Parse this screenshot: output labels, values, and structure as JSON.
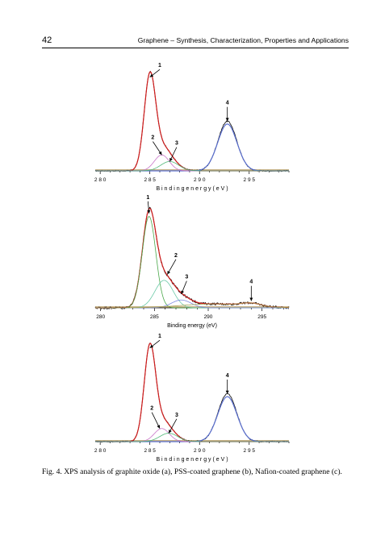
{
  "header": {
    "page_number": "42",
    "running_title": "Graphene – Synthesis, Characterization, Properties and Applications"
  },
  "caption": "Fig. 4. XPS analysis of graphite oxide (a), PSS-coated graphene (b), Nafion-coated graphene (c).",
  "chart_data": [
    {
      "type": "line",
      "panel": "a",
      "xlabel": "B i n d i n g   e n e r g y   ( e V )",
      "xlim": [
        279.5,
        299
      ],
      "ylim": [
        0,
        1.05
      ],
      "x_ticks": [
        280,
        285,
        290,
        295
      ],
      "x_tick_labels": [
        "2 8 0",
        "2 8 5",
        "2 9 0",
        "2 9 5"
      ],
      "baseline_color": "#c8b488",
      "series": [
        {
          "color": "#1a1a1a",
          "kind": "experimental",
          "noise": 0.006,
          "peaks": [
            [
              285.0,
              1.0,
              0.58
            ],
            [
              286.2,
              0.17,
              0.75
            ],
            [
              287.0,
              0.1,
              0.9
            ],
            [
              292.8,
              0.53,
              0.95
            ]
          ]
        },
        {
          "color": "#d01c1c",
          "kind": "fit",
          "peaks": [
            [
              285.0,
              1.0,
              0.58
            ],
            [
              286.2,
              0.17,
              0.75
            ],
            [
              287.0,
              0.1,
              0.9
            ]
          ]
        },
        {
          "color": "#5a6fd0",
          "kind": "fit",
          "peaks": [
            [
              292.8,
              0.5,
              0.97
            ]
          ]
        },
        {
          "color": "#c874c8",
          "kind": "component",
          "peaks": [
            [
              286.2,
              0.17,
              0.75
            ]
          ]
        },
        {
          "color": "#50b878",
          "kind": "component",
          "peaks": [
            [
              287.0,
              0.1,
              0.9
            ]
          ]
        }
      ],
      "annotations": [
        {
          "label": "1",
          "x": 285.0,
          "y": 1.0,
          "tx": 286.0,
          "ty": 1.1
        },
        {
          "label": "2",
          "x": 286.2,
          "y": 0.17,
          "tx": 285.3,
          "ty": 0.33
        },
        {
          "label": "3",
          "x": 287.0,
          "y": 0.1,
          "tx": 287.7,
          "ty": 0.27
        },
        {
          "label": "4",
          "x": 292.8,
          "y": 0.53,
          "tx": 292.8,
          "ty": 0.7
        }
      ]
    },
    {
      "type": "line",
      "panel": "b",
      "xlabel": "Binding energy (eV)",
      "xlim": [
        279.5,
        297.5
      ],
      "ylim": [
        0,
        1.0
      ],
      "x_ticks": [
        280,
        285,
        290,
        295
      ],
      "x_tick_labels": [
        "280",
        "285",
        "290",
        "295"
      ],
      "baseline_color": "#c8b488",
      "series": [
        {
          "color": "#1a1a1a",
          "kind": "experimental",
          "noise": 0.012,
          "peaks": [
            [
              284.5,
              0.93,
              0.63
            ],
            [
              285.9,
              0.28,
              0.85
            ],
            [
              287.5,
              0.08,
              0.9
            ],
            [
              290.5,
              0.04,
              3.0
            ],
            [
              294.0,
              0.03,
              0.9
            ]
          ]
        },
        {
          "color": "#d01c1c",
          "kind": "fit",
          "peaks": [
            [
              284.5,
              0.93,
              0.63
            ],
            [
              285.9,
              0.28,
              0.85
            ],
            [
              287.5,
              0.08,
              0.9
            ],
            [
              290.5,
              0.04,
              3.0
            ],
            [
              294.0,
              0.03,
              0.9
            ]
          ]
        },
        {
          "color": "#4aa84a",
          "kind": "component",
          "peaks": [
            [
              284.5,
              0.93,
              0.63
            ]
          ]
        },
        {
          "color": "#6ccaa8",
          "kind": "component",
          "peaks": [
            [
              285.9,
              0.28,
              0.85
            ]
          ]
        },
        {
          "color": "#7f8be0",
          "kind": "component",
          "peaks": [
            [
              287.5,
              0.08,
              0.9
            ]
          ]
        },
        {
          "color": "#a8a050",
          "kind": "component",
          "peaks": [
            [
              290.5,
              0.04,
              3.0
            ],
            [
              294.0,
              0.03,
              0.9
            ]
          ]
        }
      ],
      "annotations": [
        {
          "label": "1",
          "x": 284.5,
          "y": 0.96,
          "tx": 284.4,
          "ty": 1.1
        },
        {
          "label": "2",
          "x": 286.2,
          "y": 0.34,
          "tx": 287.0,
          "ty": 0.51
        },
        {
          "label": "3",
          "x": 287.5,
          "y": 0.14,
          "tx": 288.0,
          "ty": 0.29
        },
        {
          "label": "4",
          "x": 294.0,
          "y": 0.07,
          "tx": 294.0,
          "ty": 0.24
        }
      ]
    },
    {
      "type": "line",
      "panel": "c",
      "xlabel": "B i n d i n g   e n e r g y   ( e V )",
      "xlim": [
        279.5,
        299
      ],
      "ylim": [
        0,
        1.05
      ],
      "x_ticks": [
        280,
        285,
        290,
        295
      ],
      "x_tick_labels": [
        "2 8 0",
        "2 8 5",
        "2 9 0",
        "2 9 5"
      ],
      "baseline_color": "#c8b488",
      "series": [
        {
          "color": "#1a1a1a",
          "kind": "experimental",
          "noise": 0.006,
          "peaks": [
            [
              285.0,
              1.0,
              0.58
            ],
            [
              286.2,
              0.14,
              0.75
            ],
            [
              286.9,
              0.09,
              0.9
            ],
            [
              292.8,
              0.51,
              0.95
            ]
          ]
        },
        {
          "color": "#d01c1c",
          "kind": "fit",
          "peaks": [
            [
              285.0,
              1.0,
              0.58
            ],
            [
              286.2,
              0.14,
              0.75
            ],
            [
              286.9,
              0.09,
              0.9
            ]
          ]
        },
        {
          "color": "#5a6fd0",
          "kind": "fit",
          "peaks": [
            [
              292.8,
              0.48,
              0.97
            ]
          ]
        },
        {
          "color": "#c874c8",
          "kind": "component",
          "peaks": [
            [
              286.2,
              0.14,
              0.75
            ]
          ]
        },
        {
          "color": "#50b878",
          "kind": "component",
          "peaks": [
            [
              286.9,
              0.09,
              0.9
            ]
          ]
        }
      ],
      "annotations": [
        {
          "label": "1",
          "x": 285.0,
          "y": 1.0,
          "tx": 286.0,
          "ty": 1.1
        },
        {
          "label": "2",
          "x": 286.0,
          "y": 0.14,
          "tx": 285.2,
          "ty": 0.33
        },
        {
          "label": "3",
          "x": 286.9,
          "y": 0.09,
          "tx": 287.7,
          "ty": 0.26
        },
        {
          "label": "4",
          "x": 292.8,
          "y": 0.51,
          "tx": 292.8,
          "ty": 0.68
        }
      ]
    }
  ]
}
